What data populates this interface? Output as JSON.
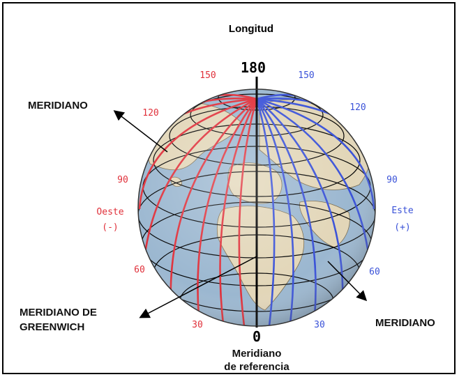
{
  "title": "Longitud",
  "top_value": "180",
  "bottom_value": "0",
  "bottom_caption_line1": "Meridiano",
  "bottom_caption_line2": "de referencia",
  "west_word": "Oeste",
  "west_sign": "(-)",
  "east_word": "Este",
  "east_sign": "(+)",
  "west_degrees": [
    "150",
    "120",
    "90",
    "60",
    "30"
  ],
  "east_degrees": [
    "150",
    "120",
    "90",
    "60",
    "30"
  ],
  "callouts": {
    "meridiano_top_left": "MERIDIANO",
    "greenwich_line1": "MERIDIANO DE",
    "greenwich_line2": "GREENWICH",
    "meridiano_right": "MERIDIANO"
  },
  "colors": {
    "west_meridians": "#e0303a",
    "east_meridians": "#3a52d8",
    "ocean": "#9bb7d0",
    "land": "#e2d6b8"
  }
}
